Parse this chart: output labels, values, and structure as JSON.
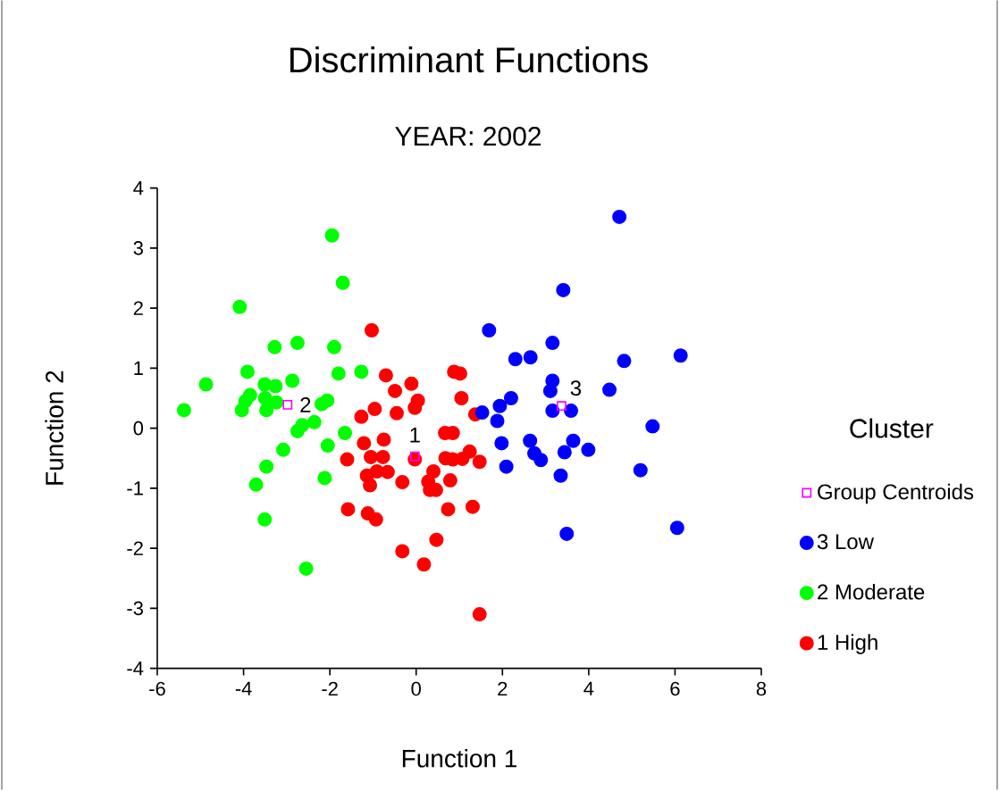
{
  "chart_data": {
    "type": "scatter",
    "title": "Discriminant Functions",
    "subtitle": "YEAR:  2002",
    "xlabel": "Function 1",
    "ylabel": "Function 2",
    "legend_title": "Cluster",
    "legend": "right",
    "grid": false,
    "xlim": [
      -6,
      8
    ],
    "xticks": [
      -6,
      -4,
      -2,
      0,
      2,
      4,
      6,
      8
    ],
    "ylim": [
      -4,
      4
    ],
    "yticks": [
      -4,
      -3,
      -2,
      -1,
      0,
      1,
      2,
      3,
      4
    ],
    "annotations": [
      {
        "text": "1",
        "x": -0.03,
        "y": -0.47
      },
      {
        "text": "2",
        "x": -2.98,
        "y": 0.39
      },
      {
        "text": "3",
        "x": 3.37,
        "y": 0.37
      }
    ],
    "series": [
      {
        "name": "Group Centroids",
        "color": "#ff00ff",
        "marker": "square",
        "x": [
          -0.03,
          -2.98,
          3.37
        ],
        "values": [
          -0.47,
          0.39,
          0.37
        ]
      },
      {
        "name": "3 Low",
        "color": "#0000ff",
        "marker": "circle",
        "x": [
          4.71,
          3.41,
          1.69,
          3.16,
          2.3,
          2.65,
          4.82,
          6.13,
          3.16,
          3.11,
          4.48,
          2.2,
          1.94,
          1.53,
          1.88,
          3.16,
          3.59,
          5.48,
          1.98,
          2.64,
          3.64,
          3.99,
          2.74,
          2.89,
          3.44,
          2.09,
          5.2,
          3.35,
          3.49,
          6.05
        ],
        "values": [
          3.52,
          2.3,
          1.63,
          1.42,
          1.15,
          1.18,
          1.12,
          1.21,
          0.79,
          0.62,
          0.64,
          0.5,
          0.37,
          0.26,
          0.12,
          0.29,
          0.29,
          0.03,
          -0.25,
          -0.21,
          -0.21,
          -0.36,
          -0.42,
          -0.53,
          -0.4,
          -0.64,
          -0.7,
          -0.79,
          -1.76,
          -1.66
        ]
      },
      {
        "name": "2 Moderate",
        "color": "#00ff00",
        "marker": "circle",
        "x": [
          -4.09,
          -1.95,
          -1.7,
          -2.75,
          -3.28,
          -1.9,
          -3.91,
          -1.8,
          -1.27,
          -4.87,
          -3.51,
          -3.26,
          -2.87,
          -5.38,
          -3.85,
          -3.96,
          -4.04,
          -3.5,
          -3.47,
          -3.24,
          -2.19,
          -2.06,
          -2.36,
          -2.64,
          -2.75,
          -1.65,
          -3.08,
          -2.05,
          -3.47,
          -3.71,
          -2.12,
          -3.51,
          -2.55
        ],
        "values": [
          2.02,
          3.21,
          2.42,
          1.42,
          1.35,
          1.35,
          0.94,
          0.91,
          0.94,
          0.73,
          0.73,
          0.7,
          0.79,
          0.3,
          0.55,
          0.45,
          0.3,
          0.5,
          0.3,
          0.43,
          0.4,
          0.46,
          0.1,
          0.05,
          -0.05,
          -0.08,
          -0.36,
          -0.29,
          -0.64,
          -0.94,
          -0.83,
          -1.52,
          -2.34
        ]
      },
      {
        "name": "1 High",
        "color": "#ff0000",
        "marker": "circle",
        "x": [
          -1.03,
          -0.7,
          -0.49,
          -0.11,
          -0.96,
          -0.45,
          -0.03,
          0.04,
          -1.27,
          -0.75,
          -1.21,
          -1.6,
          -1.05,
          -0.77,
          -1.14,
          -0.91,
          -0.66,
          -1.07,
          -0.32,
          -1.58,
          -1.12,
          -0.93,
          -0.32,
          0.18,
          0.47,
          -0.03,
          0.28,
          0.4,
          0.32,
          0.46,
          0.74,
          0.79,
          0.68,
          0.85,
          0.67,
          0.85,
          0.88,
          1.02,
          1.05,
          1.37,
          1.47,
          1.24,
          1.07,
          1.31,
          1.47
        ],
        "values": [
          1.63,
          0.88,
          0.62,
          0.74,
          0.32,
          0.25,
          0.34,
          0.46,
          0.19,
          -0.19,
          -0.25,
          -0.52,
          -0.48,
          -0.48,
          -0.79,
          -0.72,
          -0.73,
          -0.95,
          -0.9,
          -1.35,
          -1.42,
          -1.52,
          -2.05,
          -2.27,
          -1.86,
          -0.52,
          -0.89,
          -0.72,
          -1.03,
          -1.03,
          -1.35,
          -0.87,
          -0.5,
          -0.52,
          -0.08,
          -0.08,
          0.94,
          0.91,
          0.5,
          0.23,
          -0.56,
          -0.39,
          -0.51,
          -1.31,
          -3.1
        ]
      }
    ]
  }
}
